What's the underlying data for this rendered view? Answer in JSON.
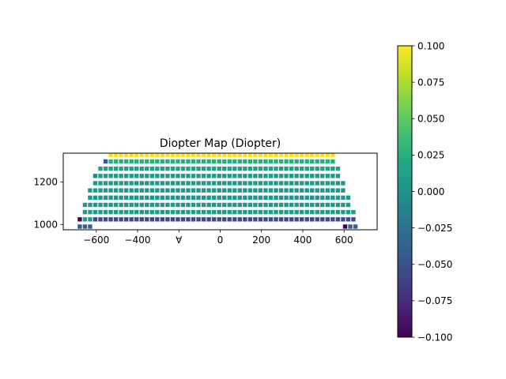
{
  "chart_data": {
    "type": "heatmap",
    "title": "Diopter Map (Diopter)",
    "xlabel": "",
    "ylabel": "",
    "xlim": [
      -760,
      760
    ],
    "ylim": [
      975,
      1335
    ],
    "x_ticks": [
      -600,
      -400,
      -200,
      0,
      200,
      400,
      600
    ],
    "y_ticks": [
      1000,
      1200
    ],
    "x_tick_labels": [
      "−600",
      "−400",
      "∀",
      "0",
      "200",
      "400",
      "600"
    ],
    "y_tick_labels": [
      "1000",
      "1200"
    ],
    "colormap": "viridis",
    "colorbar": {
      "vmin": -0.1,
      "vmax": 0.1,
      "ticks": [
        0.1,
        0.075,
        0.05,
        0.025,
        0.0,
        -0.025,
        -0.05,
        -0.075,
        -0.1
      ],
      "tick_labels": [
        "0.100",
        "0.075",
        "0.050",
        "0.025",
        "0.000",
        "−0.025",
        "−0.050",
        "−0.075",
        "−0.100"
      ]
    },
    "grid": {
      "x_start": -680,
      "x_step": 25,
      "columns": 55,
      "row_y": [
        990,
        1024,
        1058,
        1092,
        1126,
        1160,
        1194,
        1228,
        1262,
        1296,
        1326
      ]
    },
    "rows": [
      {
        "y": 990,
        "ranges": [
          [
            -680,
            -630
          ],
          [
            605,
            655
          ]
        ]
      },
      {
        "y": 1024,
        "ranges": [
          [
            -680,
            -680
          ],
          [
            -655,
            655
          ]
        ]
      },
      {
        "y": 1058,
        "ranges": [
          [
            -655,
            655
          ]
        ]
      },
      {
        "y": 1092,
        "ranges": [
          [
            -655,
            630
          ]
        ]
      },
      {
        "y": 1126,
        "ranges": [
          [
            -630,
            630
          ]
        ]
      },
      {
        "y": 1160,
        "ranges": [
          [
            -630,
            605
          ]
        ]
      },
      {
        "y": 1194,
        "ranges": [
          [
            -605,
            605
          ]
        ]
      },
      {
        "y": 1228,
        "ranges": [
          [
            -605,
            580
          ]
        ]
      },
      {
        "y": 1262,
        "ranges": [
          [
            -580,
            580
          ]
        ]
      },
      {
        "y": 1296,
        "ranges": [
          [
            -555,
            555
          ]
        ]
      },
      {
        "y": 1326,
        "ranges": [
          [
            -530,
            555
          ]
        ]
      }
    ],
    "row_values": {
      "990": -0.04,
      "1024": -0.055,
      "1058": 0.008,
      "1092": 0.006,
      "1126": 0.005,
      "1160": 0.005,
      "1194": 0.006,
      "1228": 0.008,
      "1262": 0.012,
      "1296": 0.025,
      "1326": 0.095
    },
    "overrides": [
      {
        "x": 605,
        "y": 990,
        "value": -0.1
      },
      {
        "x": -680,
        "y": 1024,
        "value": -0.1
      },
      {
        "x": -655,
        "y": 1024,
        "value": 0.008
      },
      {
        "x": -630,
        "y": 1024,
        "value": 0.008
      },
      {
        "x": 630,
        "y": 1024,
        "value": 0.008
      },
      {
        "x": 655,
        "y": 1024,
        "value": 0.008
      },
      {
        "x": -555,
        "y": 1296,
        "value": -0.045
      },
      {
        "x": -605,
        "y": 1228,
        "value": -0.005
      },
      {
        "x": 555,
        "y": 1296,
        "value": 0.025
      },
      {
        "x": 580,
        "y": 1262,
        "value": 0.012
      }
    ]
  }
}
